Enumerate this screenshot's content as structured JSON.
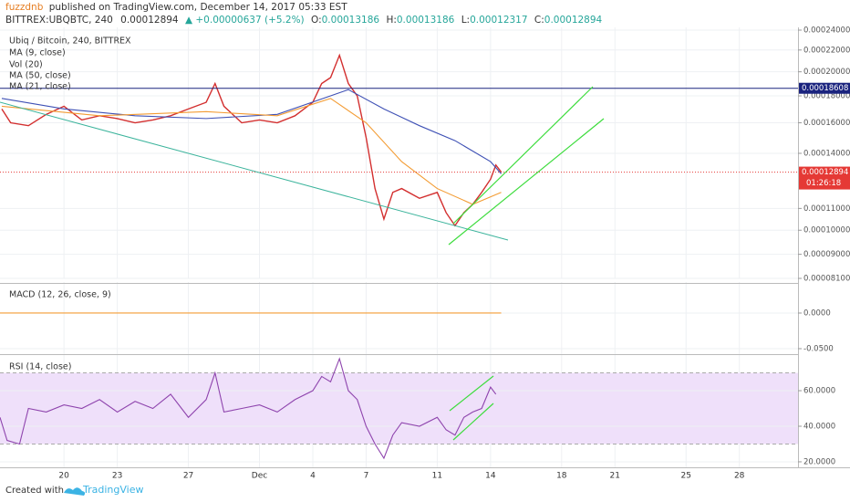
{
  "header": {
    "publisher": "fuzzdnb",
    "published": "published on TradingView.com, December 14, 2017 05:33 EST",
    "symbol": "BITTREX:UBQBTC, 240",
    "price": "0.00012894",
    "change": "▲ +0.00000637 (+5.2%)",
    "ohlc": [
      {
        "label": "O:",
        "value": "0.00013186"
      },
      {
        "label": "H:",
        "value": "0.00013186"
      },
      {
        "label": "L:",
        "value": "0.00012317"
      },
      {
        "label": "C:",
        "value": "0.00012894"
      }
    ]
  },
  "chart_data": [
    {
      "type": "line",
      "title": "Ubiq / Bitcoin, 240, BITTREX",
      "studies": [
        "Vol (20)"
      ],
      "log_scale": true,
      "grid": true,
      "xlim": [
        16.4,
        61.3
      ],
      "xticks": [
        {
          "value": 20,
          "label": "20"
        },
        {
          "value": 23,
          "label": "23"
        },
        {
          "value": 27,
          "label": "27"
        },
        {
          "value": 31,
          "label": "Dec"
        },
        {
          "value": 34,
          "label": "4"
        },
        {
          "value": 37,
          "label": "7"
        },
        {
          "value": 41,
          "label": "11"
        },
        {
          "value": 44,
          "label": "14"
        },
        {
          "value": 48,
          "label": "18"
        },
        {
          "value": 51,
          "label": "21"
        },
        {
          "value": 55,
          "label": "25"
        },
        {
          "value": 58,
          "label": "28"
        }
      ],
      "ylim": [
        8.1e-05,
        0.00024
      ],
      "yticks": [
        {
          "value": 0.00024,
          "label": "0.00024000"
        },
        {
          "value": 0.00022,
          "label": "0.00022000"
        },
        {
          "value": 0.0002,
          "label": "0.00020000"
        },
        {
          "value": 0.00018,
          "label": "0.00018000"
        },
        {
          "value": 0.00016,
          "label": "0.00016000"
        },
        {
          "value": 0.00014,
          "label": "0.00014000"
        },
        {
          "value": 0.00011,
          "label": "0.00011000"
        },
        {
          "value": 0.0001,
          "label": "0.00010000"
        },
        {
          "value": 9e-05,
          "label": "0.00009000"
        },
        {
          "value": 8.1e-05,
          "label": "0.00008100"
        }
      ],
      "series": [
        {
          "name": "MA (9, close)",
          "color": "#d32f2f",
          "x": [
            16.5,
            17,
            18,
            19,
            20,
            21,
            22,
            23,
            24,
            25,
            26,
            27,
            28,
            28.5,
            29,
            30,
            31,
            32,
            33,
            34,
            34.5,
            35,
            35.5,
            36,
            36.5,
            37,
            37.5,
            38,
            38.5,
            39,
            40,
            41,
            41.5,
            42,
            42.5,
            43,
            43.5,
            44,
            44.3,
            44.6
          ],
          "values": [
            0.00017,
            0.00016,
            0.000158,
            0.000166,
            0.000172,
            0.000162,
            0.000165,
            0.000163,
            0.00016,
            0.000162,
            0.000165,
            0.00017,
            0.000175,
            0.00019,
            0.000172,
            0.00016,
            0.000162,
            0.00016,
            0.000165,
            0.000175,
            0.00019,
            0.000195,
            0.000215,
            0.00019,
            0.00018,
            0.00015,
            0.00012,
            0.000105,
            0.000118,
            0.00012,
            0.000115,
            0.000118,
            0.000108,
            0.000102,
            0.000108,
            0.000112,
            0.000118,
            0.000125,
            0.000133,
            0.000129
          ]
        },
        {
          "name": "MA (50, close)",
          "color": "#3f51b5",
          "x": [
            16.5,
            20,
            24,
            28,
            32,
            35,
            36,
            38,
            40,
            42,
            44,
            44.6
          ],
          "values": [
            0.000178,
            0.00017,
            0.000165,
            0.000163,
            0.000166,
            0.00018,
            0.000185,
            0.00017,
            0.000158,
            0.000148,
            0.000135,
            0.000128
          ]
        },
        {
          "name": "MA (21, close)",
          "color": "#f39c34",
          "x": [
            16.5,
            22,
            28,
            32,
            35,
            37,
            39,
            41,
            43,
            44.6
          ],
          "values": [
            0.000172,
            0.000165,
            0.000168,
            0.000165,
            0.000178,
            0.00016,
            0.000135,
            0.00012,
            0.000112,
            0.000118
          ]
        }
      ],
      "price_line": {
        "value": 0.00018608,
        "label": "0.00018608",
        "color": "#1a237e"
      },
      "last_price": {
        "value": 0.00012894,
        "label": "0.00012894",
        "countdown": "01:26:18",
        "color": "#e53935"
      }
    },
    {
      "type": "line",
      "title": "MACD (12, 26, close, 9)",
      "ylim": [
        -0.0577,
        0.0397
      ],
      "yticks": [
        {
          "value": 0,
          "label": "0.0000"
        },
        {
          "value": -0.05,
          "label": "-0.0500"
        }
      ],
      "series": [
        {
          "color": "#f39c34",
          "x": [
            16.4,
            44.6
          ],
          "values": [
            0,
            0
          ]
        }
      ]
    },
    {
      "type": "line",
      "title": "RSI (14, close)",
      "ylim": [
        16.9,
        78.5
      ],
      "yticks": [
        {
          "value": 60,
          "label": "60.0000"
        },
        {
          "value": 40,
          "label": "40.0000"
        },
        {
          "value": 20,
          "label": "20.0000"
        }
      ],
      "band": [
        30,
        70
      ],
      "series": [
        {
          "color": "#8e44ad",
          "x": [
            16.4,
            16.8,
            17.5,
            18,
            19,
            20,
            21,
            22,
            23,
            24,
            25,
            26,
            27,
            28,
            28.5,
            29,
            30,
            31,
            32,
            33,
            34,
            34.5,
            35,
            35.5,
            36,
            36.5,
            37,
            37.5,
            38,
            38.5,
            39,
            40,
            41,
            41.5,
            42,
            42.5,
            43,
            43.5,
            44,
            44.3
          ],
          "values": [
            45,
            32,
            30,
            50,
            48,
            52,
            50,
            55,
            48,
            54,
            50,
            58,
            45,
            55,
            70,
            48,
            50,
            52,
            48,
            55,
            60,
            68,
            65,
            78,
            60,
            55,
            40,
            30,
            22,
            35,
            42,
            40,
            45,
            38,
            35,
            45,
            48,
            50,
            62,
            58
          ]
        }
      ]
    }
  ],
  "footer": {
    "created": "Created with",
    "brand": "TradingView"
  }
}
